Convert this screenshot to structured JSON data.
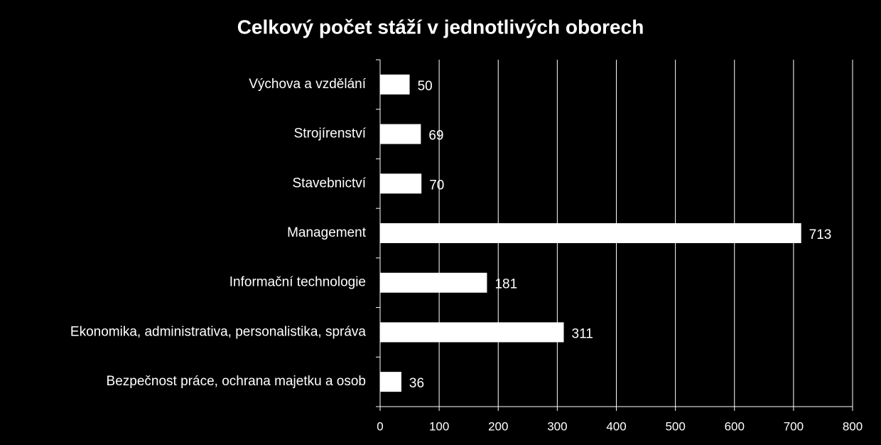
{
  "chart_data": {
    "type": "bar",
    "orientation": "horizontal",
    "title": "Celkový počet stáží v jednotlivých oborech",
    "categories": [
      "Výchova a vzdělání",
      "Strojírenství",
      "Stavebnictví",
      "Management",
      "Informační technologie",
      "Ekonomika, administrativa, personalistika, správa",
      "Bezpečnost práce, ochrana majetku a osob"
    ],
    "values": [
      50,
      69,
      70,
      713,
      181,
      311,
      36
    ],
    "color": "#ffffff",
    "xlim": [
      0,
      800
    ],
    "xticks": [
      0,
      100,
      200,
      300,
      400,
      500,
      600,
      700,
      800
    ],
    "grid": true
  }
}
